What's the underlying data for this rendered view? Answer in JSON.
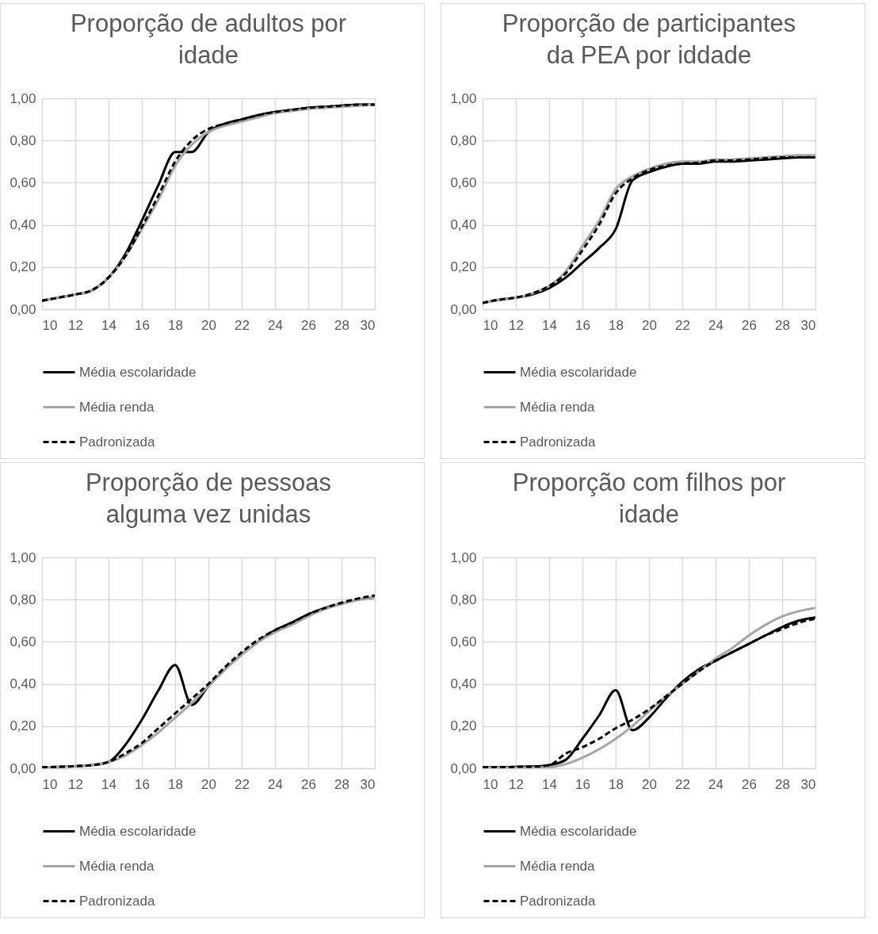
{
  "chart_data": [
    {
      "type": "line",
      "title": "Proporção de adultos por idade",
      "x": [
        10,
        11,
        12,
        13,
        14,
        15,
        16,
        17,
        18,
        19,
        20,
        21,
        22,
        23,
        24,
        25,
        26,
        27,
        28,
        29,
        30
      ],
      "xlim": [
        10,
        30
      ],
      "xticks": [
        10,
        12,
        14,
        16,
        18,
        20,
        22,
        24,
        26,
        28,
        30
      ],
      "ylim": [
        0,
        1
      ],
      "yticks": [
        {
          "value": 0,
          "label": "0,00"
        },
        {
          "value": 0.2,
          "label": "0,20"
        },
        {
          "value": 0.4,
          "label": "0,40"
        },
        {
          "value": 0.6,
          "label": "0,60"
        },
        {
          "value": 0.8,
          "label": "0,80"
        },
        {
          "value": 1,
          "label": "1,00"
        }
      ],
      "grid": true,
      "legend": "bottom",
      "series": [
        {
          "name": "Média escolaridade",
          "color": "#000000",
          "line_style": "solid",
          "values": [
            0.04,
            0.055,
            0.07,
            0.09,
            0.15,
            0.26,
            0.42,
            0.59,
            0.745,
            0.745,
            0.84,
            0.88,
            0.9,
            0.92,
            0.935,
            0.945,
            0.955,
            0.96,
            0.965,
            0.97,
            0.97
          ]
        },
        {
          "name": "Média renda",
          "color": "#a6a6a6",
          "line_style": "solid",
          "values": [
            0.04,
            0.055,
            0.07,
            0.09,
            0.15,
            0.25,
            0.38,
            0.52,
            0.68,
            0.78,
            0.84,
            0.87,
            0.89,
            0.91,
            0.93,
            0.94,
            0.95,
            0.955,
            0.96,
            0.965,
            0.97
          ]
        },
        {
          "name": "Padronizada",
          "color": "#000000",
          "line_style": "dashed",
          "values": [
            0.04,
            0.055,
            0.07,
            0.09,
            0.15,
            0.25,
            0.39,
            0.54,
            0.7,
            0.8,
            0.855,
            0.88,
            0.9,
            0.92,
            0.935,
            0.945,
            0.955,
            0.96,
            0.965,
            0.97,
            0.97
          ]
        }
      ]
    },
    {
      "type": "line",
      "title": "Proporção de participantes da PEA por iddade",
      "x": [
        10,
        11,
        12,
        13,
        14,
        15,
        16,
        17,
        18,
        19,
        20,
        21,
        22,
        23,
        24,
        25,
        26,
        27,
        28,
        29,
        30
      ],
      "xlim": [
        10,
        30
      ],
      "xticks": [
        10,
        12,
        14,
        16,
        18,
        20,
        22,
        24,
        26,
        28,
        30
      ],
      "ylim": [
        0,
        1
      ],
      "yticks": [
        {
          "value": 0,
          "label": "0,00"
        },
        {
          "value": 0.2,
          "label": "0,20"
        },
        {
          "value": 0.4,
          "label": "0,40"
        },
        {
          "value": 0.6,
          "label": "0,60"
        },
        {
          "value": 0.8,
          "label": "0,80"
        },
        {
          "value": 1,
          "label": "1,00"
        }
      ],
      "grid": true,
      "legend": "bottom",
      "series": [
        {
          "name": "Média escolaridade",
          "color": "#000000",
          "line_style": "solid",
          "values": [
            0.03,
            0.045,
            0.055,
            0.07,
            0.1,
            0.15,
            0.22,
            0.29,
            0.38,
            0.61,
            0.65,
            0.675,
            0.69,
            0.69,
            0.7,
            0.7,
            0.705,
            0.71,
            0.715,
            0.72,
            0.72
          ]
        },
        {
          "name": "Média renda",
          "color": "#a6a6a6",
          "line_style": "solid",
          "values": [
            0.03,
            0.045,
            0.055,
            0.075,
            0.11,
            0.18,
            0.3,
            0.42,
            0.57,
            0.63,
            0.665,
            0.69,
            0.7,
            0.7,
            0.71,
            0.71,
            0.715,
            0.72,
            0.725,
            0.73,
            0.73
          ]
        },
        {
          "name": "Padronizada",
          "color": "#000000",
          "line_style": "dashed",
          "values": [
            0.03,
            0.045,
            0.055,
            0.075,
            0.11,
            0.17,
            0.28,
            0.4,
            0.55,
            0.62,
            0.66,
            0.68,
            0.69,
            0.695,
            0.705,
            0.705,
            0.71,
            0.715,
            0.72,
            0.72,
            0.72
          ]
        }
      ]
    },
    {
      "type": "line",
      "title": "Proporção de pessoas alguma vez unidas",
      "x": [
        10,
        11,
        12,
        13,
        14,
        15,
        16,
        17,
        18,
        19,
        20,
        21,
        22,
        23,
        24,
        25,
        26,
        27,
        28,
        29,
        30
      ],
      "xlim": [
        10,
        30
      ],
      "xticks": [
        10,
        12,
        14,
        16,
        18,
        20,
        22,
        24,
        26,
        28,
        30
      ],
      "ylim": [
        0,
        1
      ],
      "yticks": [
        {
          "value": 0,
          "label": "0,00"
        },
        {
          "value": 0.2,
          "label": "0,20"
        },
        {
          "value": 0.4,
          "label": "0,40"
        },
        {
          "value": 0.6,
          "label": "0,60"
        },
        {
          "value": 0.8,
          "label": "0,80"
        },
        {
          "value": 1,
          "label": "1,00"
        }
      ],
      "grid": true,
      "legend": "bottom",
      "series": [
        {
          "name": "Média escolaridade",
          "color": "#000000",
          "line_style": "solid",
          "values": [
            0.005,
            0.007,
            0.01,
            0.015,
            0.03,
            0.11,
            0.23,
            0.37,
            0.49,
            0.3,
            0.39,
            0.47,
            0.54,
            0.6,
            0.655,
            0.69,
            0.73,
            0.76,
            0.78,
            0.8,
            0.81
          ]
        },
        {
          "name": "Média renda",
          "color": "#a6a6a6",
          "line_style": "solid",
          "values": [
            0.005,
            0.007,
            0.01,
            0.015,
            0.03,
            0.06,
            0.11,
            0.17,
            0.24,
            0.31,
            0.39,
            0.47,
            0.54,
            0.6,
            0.645,
            0.68,
            0.72,
            0.755,
            0.78,
            0.8,
            0.81
          ]
        },
        {
          "name": "Padronizada",
          "color": "#000000",
          "line_style": "dashed",
          "values": [
            0.005,
            0.007,
            0.01,
            0.015,
            0.03,
            0.07,
            0.12,
            0.19,
            0.26,
            0.33,
            0.4,
            0.48,
            0.55,
            0.61,
            0.655,
            0.69,
            0.73,
            0.76,
            0.785,
            0.805,
            0.82
          ]
        }
      ]
    },
    {
      "type": "line",
      "title": "Proporção com filhos por idade",
      "x": [
        10,
        11,
        12,
        13,
        14,
        15,
        16,
        17,
        18,
        19,
        20,
        21,
        22,
        23,
        24,
        25,
        26,
        27,
        28,
        29,
        30
      ],
      "xlim": [
        10,
        30
      ],
      "xticks": [
        10,
        12,
        14,
        16,
        18,
        20,
        22,
        24,
        26,
        28,
        30
      ],
      "ylim": [
        0,
        1
      ],
      "yticks": [
        {
          "value": 0,
          "label": "0,00"
        },
        {
          "value": 0.2,
          "label": "0,20"
        },
        {
          "value": 0.4,
          "label": "0,40"
        },
        {
          "value": 0.6,
          "label": "0,60"
        },
        {
          "value": 0.8,
          "label": "0,80"
        },
        {
          "value": 1,
          "label": "1,00"
        }
      ],
      "grid": true,
      "legend": "bottom",
      "series": [
        {
          "name": "Média escolaridade",
          "color": "#000000",
          "line_style": "solid",
          "values": [
            0.005,
            0.005,
            0.007,
            0.008,
            0.015,
            0.04,
            0.14,
            0.25,
            0.37,
            0.18,
            0.24,
            0.33,
            0.41,
            0.47,
            0.51,
            0.55,
            0.59,
            0.63,
            0.67,
            0.7,
            0.715
          ]
        },
        {
          "name": "Média renda",
          "color": "#a6a6a6",
          "line_style": "solid",
          "values": [
            0.003,
            0.003,
            0.003,
            0.004,
            0.005,
            0.02,
            0.05,
            0.09,
            0.14,
            0.2,
            0.27,
            0.34,
            0.4,
            0.46,
            0.52,
            0.57,
            0.63,
            0.68,
            0.72,
            0.745,
            0.76
          ]
        },
        {
          "name": "Padronizada",
          "color": "#000000",
          "line_style": "dashed",
          "values": [
            0.005,
            0.005,
            0.007,
            0.008,
            0.015,
            0.07,
            0.1,
            0.14,
            0.19,
            0.23,
            0.28,
            0.34,
            0.4,
            0.46,
            0.51,
            0.55,
            0.59,
            0.63,
            0.66,
            0.69,
            0.71
          ]
        }
      ]
    }
  ]
}
